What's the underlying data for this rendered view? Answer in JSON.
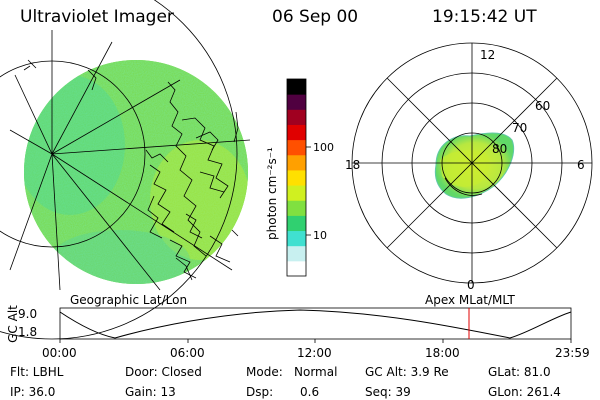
{
  "header": {
    "title": "Ultraviolet Imager",
    "date": "06 Sep 00",
    "time": "19:15:42 UT"
  },
  "colorbar": {
    "label": "photon cm⁻²s⁻¹",
    "ticks": [
      {
        "label": "100",
        "value": 100
      },
      {
        "label": "10",
        "value": 10
      }
    ],
    "colors": [
      "#ffffff",
      "#c8f0f0",
      "#40e0d0",
      "#30d070",
      "#80e040",
      "#d0f020",
      "#ffe000",
      "#ffa000",
      "#ff5000",
      "#e00000",
      "#a00020",
      "#500040",
      "#000000"
    ]
  },
  "panels": {
    "geographic_label": "Geographic Lat/Lon",
    "apex_label": "Apex MLat/MLT"
  },
  "polar": {
    "mlt_labels": [
      "12",
      "18",
      "6",
      "0"
    ],
    "lat_labels": [
      "60",
      "70",
      "80"
    ]
  },
  "timeseries": {
    "ylabel": "GC Alt",
    "ymax": "9.0",
    "ymin": "1.8",
    "xticks": [
      "00:00",
      "06:00",
      "12:00",
      "18:00",
      "23:59"
    ],
    "current_time": "19:15:42"
  },
  "info": {
    "flt": "Flt: LBHL",
    "door": "Door: Closed",
    "mode_label": "Mode:",
    "mode": "Normal",
    "gcalt": "GC Alt: 3.9 Re",
    "glat": "GLat:  81.0",
    "ip": "IP: 36.0",
    "gain": "Gain: 13",
    "dsp_label": "Dsp:",
    "dsp": "0.6",
    "seq": "Seq: 39",
    "glon": "GLon: 261.4"
  }
}
